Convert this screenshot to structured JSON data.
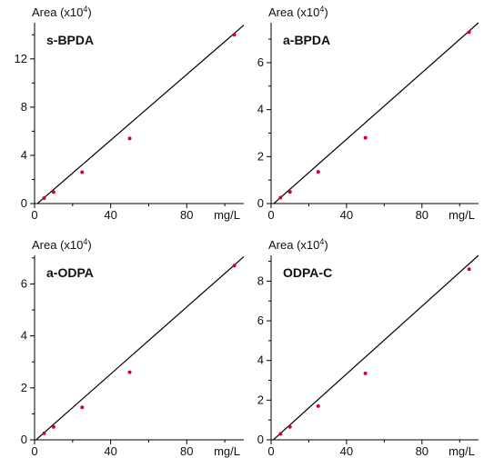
{
  "chart_data": [
    {
      "type": "scatter",
      "title": "s-BPDA",
      "ylabel": "Area (x10",
      "ylabel_exp": "4",
      "ylabel_close": ")",
      "xlabel": "mg/L",
      "xlim": [
        0,
        110
      ],
      "ylim": [
        0,
        15
      ],
      "xticks": [
        0,
        40,
        80
      ],
      "yticks": [
        0,
        4,
        8,
        12
      ],
      "grid": false,
      "points": {
        "x": [
          5,
          10,
          25,
          50,
          105
        ],
        "y": [
          0.45,
          0.95,
          2.6,
          5.4,
          14.0
        ]
      },
      "fit_line": {
        "x": [
          0,
          110
        ],
        "y": [
          -0.2,
          14.8
        ]
      },
      "point_color": "#d8002b",
      "line_color": "#000000"
    },
    {
      "type": "scatter",
      "title": "a-BPDA",
      "ylabel": "Area (x10",
      "ylabel_exp": "4",
      "ylabel_close": ")",
      "xlabel": "mg/L",
      "xlim": [
        0,
        110
      ],
      "ylim": [
        0,
        7.7
      ],
      "xticks": [
        0,
        40,
        80
      ],
      "yticks": [
        0,
        2,
        4,
        6
      ],
      "grid": false,
      "points": {
        "x": [
          5,
          10,
          25,
          50,
          105
        ],
        "y": [
          0.25,
          0.5,
          1.35,
          2.8,
          7.3
        ]
      },
      "fit_line": {
        "x": [
          0,
          110
        ],
        "y": [
          -0.1,
          7.7
        ]
      },
      "point_color": "#d8002b",
      "line_color": "#000000"
    },
    {
      "type": "scatter",
      "title": "a-ODPA",
      "ylabel": "Area (x10",
      "ylabel_exp": "4",
      "ylabel_close": ")",
      "xlabel": "mg/L",
      "xlim": [
        0,
        110
      ],
      "ylim": [
        0,
        7.1
      ],
      "xticks": [
        0,
        40,
        80
      ],
      "yticks": [
        0,
        2,
        4,
        6
      ],
      "grid": false,
      "points": {
        "x": [
          5,
          10,
          25,
          50,
          105
        ],
        "y": [
          0.25,
          0.5,
          1.25,
          2.6,
          6.7
        ]
      },
      "fit_line": {
        "x": [
          0,
          110
        ],
        "y": [
          -0.05,
          7.05
        ]
      },
      "point_color": "#d8002b",
      "line_color": "#000000"
    },
    {
      "type": "scatter",
      "title": "ODPA-C",
      "ylabel": "Area (x10",
      "ylabel_exp": "4",
      "ylabel_close": ")",
      "xlabel": "mg/L",
      "xlim": [
        0,
        110
      ],
      "ylim": [
        0,
        9.3
      ],
      "xticks": [
        0,
        40,
        80
      ],
      "yticks": [
        0,
        2,
        4,
        6,
        8
      ],
      "grid": false,
      "points": {
        "x": [
          5,
          10,
          25,
          50,
          105
        ],
        "y": [
          0.3,
          0.65,
          1.7,
          3.35,
          8.6
        ]
      },
      "fit_line": {
        "x": [
          0,
          110
        ],
        "y": [
          -0.1,
          9.3
        ]
      },
      "point_color": "#d8002b",
      "line_color": "#000000"
    }
  ]
}
